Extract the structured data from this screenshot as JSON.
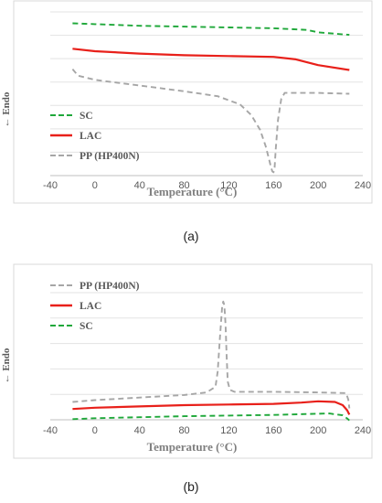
{
  "chart_data": [
    {
      "type": "line",
      "panel_label": "(a)",
      "xlabel": "Temperature  (°C)",
      "ylabel": "← Endo",
      "xlim": [
        -40,
        240
      ],
      "xticks": [
        -40,
        0,
        40,
        80,
        120,
        160,
        200,
        240
      ],
      "tick_labels": [
        "-40",
        "0",
        "40",
        "80",
        "120",
        "160",
        "200",
        "240"
      ],
      "grid": "horizontal",
      "legend": "bottom-left",
      "ylim": [
        0,
        10
      ],
      "series": [
        {
          "name": "SC",
          "color": "#1fa83a",
          "dash": "dashed",
          "x": [
            -20,
            0,
            40,
            80,
            120,
            160,
            190,
            200,
            228
          ],
          "y": [
            9.3,
            9.25,
            9.15,
            9.1,
            9.05,
            9.0,
            8.9,
            8.75,
            8.6
          ]
        },
        {
          "name": "LAC",
          "color": "#e8201a",
          "dash": "solid",
          "x": [
            -20,
            0,
            40,
            80,
            120,
            160,
            180,
            200,
            228
          ],
          "y": [
            7.75,
            7.6,
            7.45,
            7.35,
            7.3,
            7.25,
            7.1,
            6.75,
            6.45
          ]
        },
        {
          "name": "PP (HP400N)",
          "color": "#a6a6a6",
          "dash": "dashed",
          "x": [
            -20,
            -15,
            0,
            40,
            80,
            110,
            130,
            140,
            148,
            153,
            156,
            158,
            159,
            160,
            161,
            162,
            164,
            167,
            170,
            200,
            228
          ],
          "y": [
            6.5,
            6.1,
            5.85,
            5.5,
            5.15,
            4.85,
            4.35,
            3.7,
            2.8,
            1.8,
            1.0,
            0.45,
            0.25,
            0.2,
            0.5,
            1.6,
            3.4,
            4.7,
            5.05,
            5.05,
            5.0
          ]
        }
      ]
    },
    {
      "type": "line",
      "panel_label": "(b)",
      "xlabel": "Temperature  (°C)",
      "ylabel": "← Endo",
      "xlim": [
        -40,
        240
      ],
      "xticks": [
        -40,
        0,
        40,
        80,
        120,
        160,
        200,
        240
      ],
      "tick_labels": [
        "-40",
        "0",
        "40",
        "80",
        "120",
        "160",
        "200",
        "240"
      ],
      "grid": "horizontal",
      "legend": "top-left",
      "ylim": [
        0,
        10
      ],
      "series": [
        {
          "name": "PP (HP400N)",
          "color": "#a6a6a6",
          "dash": "dashed",
          "x": [
            -20,
            0,
            40,
            80,
            100,
            108,
            110,
            112,
            114,
            115,
            116,
            117,
            118,
            119,
            121,
            125,
            140,
            160,
            200,
            225,
            227,
            228
          ],
          "y": [
            1.4,
            1.55,
            1.75,
            1.95,
            2.15,
            2.6,
            3.8,
            6.5,
            8.9,
            9.3,
            9.0,
            7.5,
            5.0,
            3.0,
            2.35,
            2.2,
            2.2,
            2.2,
            2.15,
            2.1,
            1.6,
            0.9
          ]
        },
        {
          "name": "LAC",
          "color": "#e8201a",
          "dash": "solid",
          "x": [
            -20,
            0,
            40,
            80,
            120,
            160,
            185,
            200,
            215,
            222,
            226,
            228
          ],
          "y": [
            0.85,
            0.95,
            1.05,
            1.15,
            1.2,
            1.25,
            1.35,
            1.45,
            1.4,
            1.15,
            0.75,
            0.4
          ]
        },
        {
          "name": "SC",
          "color": "#1fa83a",
          "dash": "dashed",
          "x": [
            -20,
            0,
            40,
            80,
            120,
            160,
            190,
            210,
            222,
            226,
            228
          ],
          "y": [
            0.05,
            0.12,
            0.2,
            0.28,
            0.33,
            0.38,
            0.45,
            0.5,
            0.35,
            0.1,
            -0.05
          ]
        }
      ]
    }
  ]
}
